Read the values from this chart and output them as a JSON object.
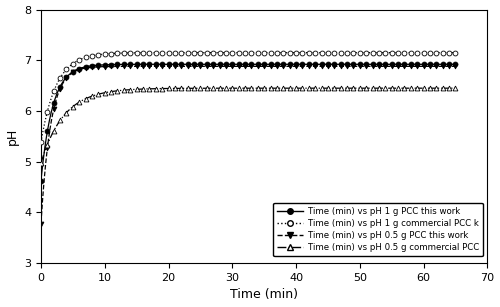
{
  "title": "",
  "xlabel": "Time (min)",
  "ylabel": "pH",
  "xlim": [
    -1,
    70
  ],
  "ylim": [
    3,
    8
  ],
  "xticks": [
    0,
    10,
    20,
    30,
    40,
    50,
    60,
    70
  ],
  "yticks": [
    3,
    4,
    5,
    6,
    7,
    8
  ],
  "series": [
    {
      "label": "Time (min) vs pH 1 g PCC this work",
      "linestyle": "-",
      "marker": "o",
      "markerfacecolor": "black",
      "markersize": 3.5,
      "color": "black",
      "type": "1g_this",
      "y_start": 3.9,
      "y_asym": 6.92,
      "k": 0.55,
      "t_shift": 0.5,
      "flat_until": -1.5,
      "marker_every_early": [
        0,
        1,
        2,
        3,
        4,
        5
      ],
      "marker_every_late": 1
    },
    {
      "label": "Time (min) vs pH 1 g commercial PCC k",
      "linestyle": ":",
      "marker": "o",
      "markerfacecolor": "white",
      "markersize": 3.5,
      "color": "black",
      "type": "1g_com",
      "y_start": 3.83,
      "y_asym": 7.15,
      "k": 0.42,
      "t_shift": 1.5,
      "flat_until": -0.5,
      "marker_every_early": [
        0,
        1,
        2,
        3,
        4,
        5,
        6
      ],
      "marker_every_late": 1
    },
    {
      "label": "Time (min) vs pH 0.5 g PCC this work",
      "linestyle": "--",
      "marker": "v",
      "markerfacecolor": "black",
      "markersize": 3.5,
      "color": "black",
      "type": "05g_this",
      "y_start": 3.35,
      "y_asym": 6.88,
      "k": 0.65,
      "t_shift": 0.2,
      "flat_until": -1.5,
      "marker_every_early": [
        0,
        1,
        2,
        3,
        4,
        5
      ],
      "marker_every_late": 1
    },
    {
      "label": "Time (min) vs pH 0.5 g commercial PCC",
      "linestyle": "-.",
      "marker": "^",
      "markerfacecolor": "white",
      "markersize": 3.5,
      "color": "black",
      "type": "05g_com",
      "y_start": 3.48,
      "y_asym": 6.45,
      "k": 0.28,
      "t_shift": 2.5,
      "flat_until": -1.5,
      "marker_every_early": [
        0,
        1,
        2,
        3,
        4,
        5,
        6,
        7,
        8,
        9,
        10
      ],
      "marker_every_late": 1
    }
  ]
}
